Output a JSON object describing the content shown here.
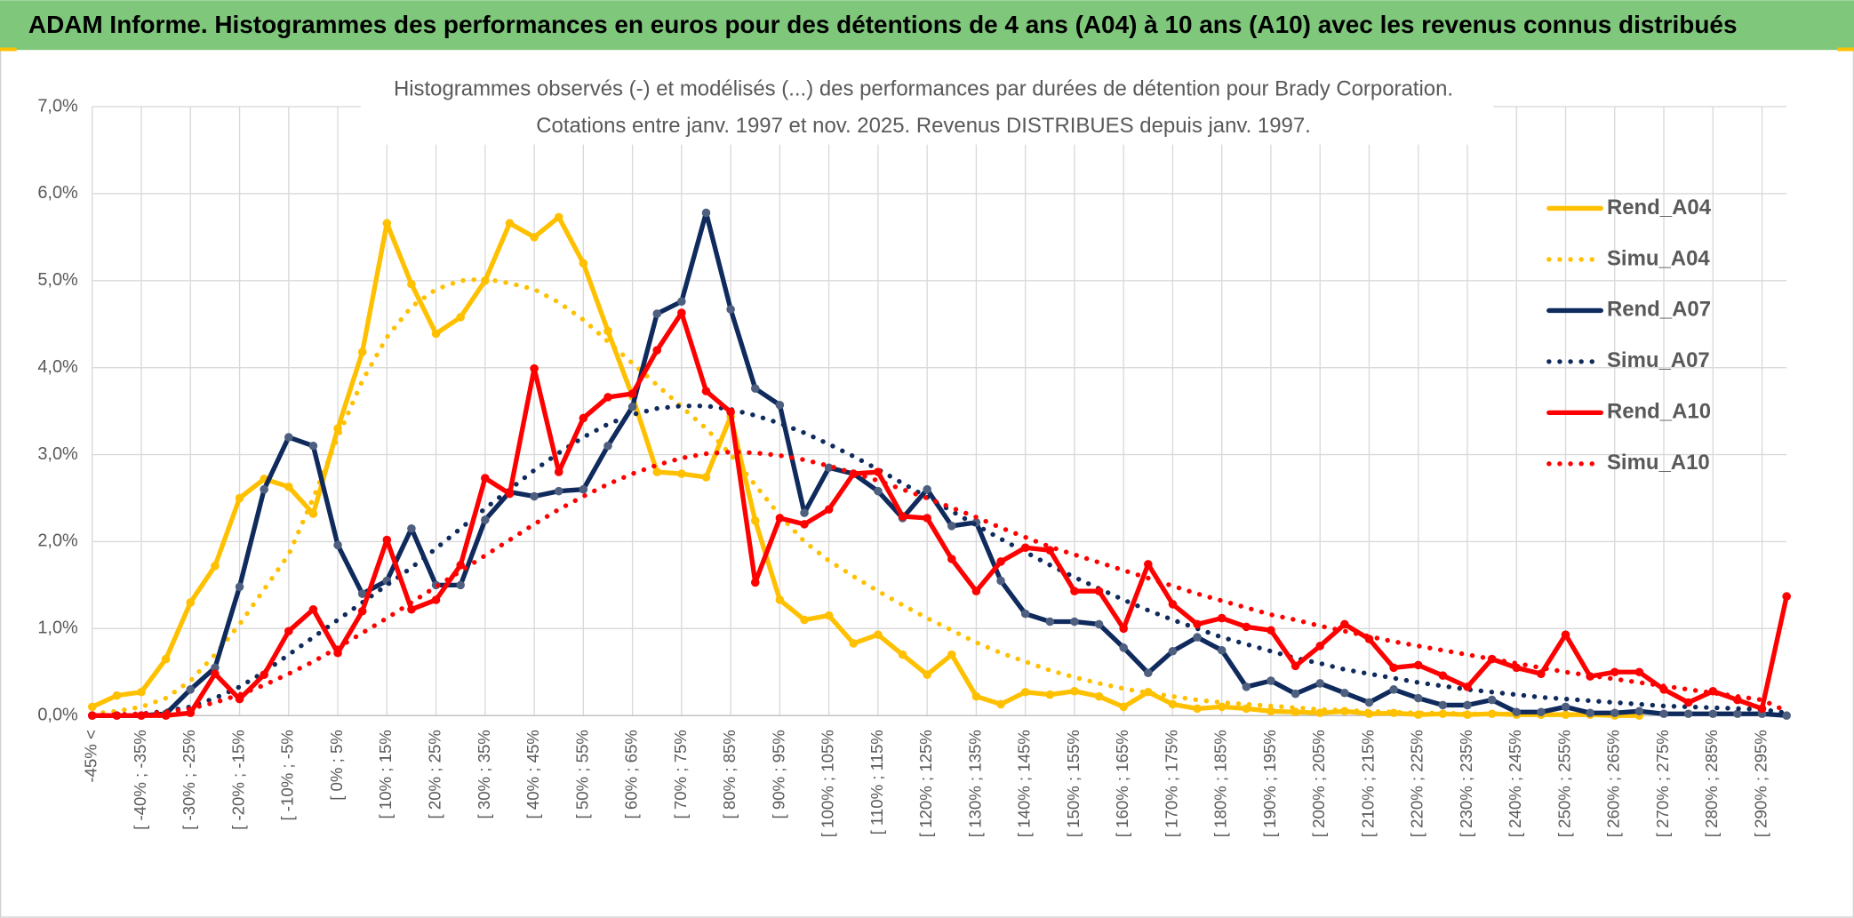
{
  "header": {
    "title": "ADAM Informe. Histogrammes des performances en euros pour des détentions de 4 ans (A04) à 10 ans (A10) avec les revenus connus distribués"
  },
  "chart_data": {
    "type": "line",
    "title": "Histogrammes observés (-) et modélisés (...) des performances par durées de détention pour Brady Corporation.",
    "subtitle": "Cotations entre janv. 1997 et nov. 2025. Revenus DISTRIBUES depuis janv. 1997.",
    "categories": [
      "-45% <",
      null,
      "[ -40% ; -35%",
      null,
      "[ -30% ; -25%",
      null,
      "[ -20% ; -15%",
      null,
      "[ -10% ; -5%",
      null,
      "[ 0% ; 5%",
      null,
      "[ 10% ; 15%",
      null,
      "[ 20% ; 25%",
      null,
      "[ 30% ; 35%",
      null,
      "[ 40% ; 45%",
      null,
      "[ 50% ; 55%",
      null,
      "[ 60% ; 65%",
      null,
      "[ 70% ; 75%",
      null,
      "[ 80% ; 85%",
      null,
      "[ 90% ; 95%",
      null,
      "[ 100% ; 105%",
      null,
      "[ 110% ; 115%",
      null,
      "[ 120% ; 125%",
      null,
      "[ 130% ; 135%",
      null,
      "[ 140% ; 145%",
      null,
      "[ 150% ; 155%",
      null,
      "[ 160% ; 165%",
      null,
      "[ 170% ; 175%",
      null,
      "[ 180% ; 185%",
      null,
      "[ 190% ; 195%",
      null,
      "[ 200% ; 205%",
      null,
      "[ 210% ; 215%",
      null,
      "[ 220% ; 225%",
      null,
      "[ 230% ; 235%",
      null,
      "[ 240% ; 245%",
      null,
      "[ 250% ; 255%",
      null,
      "[ 260% ; 265%",
      null,
      "[ 270% ; 275%",
      null,
      "[ 280% ; 285%",
      null,
      "[ 290% ; 295%",
      null
    ],
    "ylim": [
      0,
      7
    ],
    "yticks": [
      {
        "value": 0,
        "label": "0,0%"
      },
      {
        "value": 1,
        "label": "1,0%"
      },
      {
        "value": 2,
        "label": "2,0%"
      },
      {
        "value": 3,
        "label": "3,0%"
      },
      {
        "value": 4,
        "label": "4,0%"
      },
      {
        "value": 5,
        "label": "5,0%"
      },
      {
        "value": 6,
        "label": "6,0%"
      },
      {
        "value": 7,
        "label": "7,0%"
      }
    ],
    "grid": true,
    "legend": "right",
    "series": [
      {
        "name": "Rend_A04",
        "color": "#ffc000",
        "line_style": "solid",
        "markers": true,
        "values": [
          0.1,
          0.23,
          0.27,
          0.65,
          1.3,
          1.72,
          2.5,
          2.72,
          2.63,
          2.32,
          3.3,
          4.18,
          5.66,
          4.96,
          4.39,
          4.58,
          5.0,
          5.66,
          5.5,
          5.73,
          5.2,
          4.42,
          3.67,
          2.8,
          2.78,
          2.74,
          3.44,
          2.24,
          1.33,
          1.1,
          1.15,
          0.83,
          0.93,
          0.7,
          0.47,
          0.7,
          0.22,
          0.13,
          0.27,
          0.24,
          0.28,
          0.22,
          0.1,
          0.27,
          0.13,
          0.08,
          0.1,
          0.08,
          0.05,
          0.04,
          0.03,
          0.05,
          0.02,
          0.03,
          0.01,
          0.02,
          0.01,
          0.02,
          0.01,
          0.01,
          0.01,
          0.01,
          0,
          0,
          null,
          null,
          null,
          null,
          null,
          null
        ]
      },
      {
        "name": "Simu_A04",
        "color": "#ffc000",
        "line_style": "dotted",
        "markers": false,
        "values": [
          0.02,
          0.05,
          0.1,
          0.2,
          0.4,
          0.7,
          1.05,
          1.45,
          1.85,
          2.5,
          3.2,
          3.85,
          4.35,
          4.7,
          4.9,
          5.0,
          5.02,
          4.97,
          4.9,
          4.75,
          4.55,
          4.3,
          4.05,
          3.8,
          3.55,
          3.3,
          3.0,
          2.65,
          2.3,
          2.0,
          1.78,
          1.6,
          1.43,
          1.27,
          1.12,
          0.98,
          0.84,
          0.72,
          0.62,
          0.52,
          0.44,
          0.37,
          0.31,
          0.26,
          0.22,
          0.18,
          0.15,
          0.13,
          0.11,
          0.09,
          0.07,
          0.06,
          0.05,
          0.04,
          0.03,
          0.03,
          0.02,
          0.02,
          0.02,
          0.01,
          0.01,
          0.01,
          0.01,
          0.01,
          null,
          null,
          null,
          null,
          null,
          null
        ]
      },
      {
        "name": "Rend_A07",
        "color": "#0f2a5c",
        "marker_color": "#4f5f7f",
        "line_style": "solid",
        "markers": true,
        "values": [
          0,
          0,
          0,
          0.02,
          0.3,
          0.55,
          1.48,
          2.6,
          3.2,
          3.1,
          1.96,
          1.4,
          1.55,
          2.15,
          1.5,
          1.5,
          2.25,
          2.57,
          2.52,
          2.58,
          2.6,
          3.1,
          3.55,
          4.62,
          4.76,
          5.78,
          4.67,
          3.76,
          3.57,
          2.33,
          2.85,
          2.78,
          2.58,
          2.27,
          2.6,
          2.18,
          2.22,
          1.55,
          1.17,
          1.08,
          1.08,
          1.05,
          0.78,
          0.49,
          0.74,
          0.9,
          0.75,
          0.33,
          0.4,
          0.25,
          0.37,
          0.26,
          0.15,
          0.3,
          0.2,
          0.12,
          0.12,
          0.18,
          0.04,
          0.04,
          0.1,
          0.03,
          0.03,
          0.05,
          0.02,
          0.02,
          0.02,
          0.02,
          0.02,
          0
        ]
      },
      {
        "name": "Simu_A07",
        "color": "#0f2a5c",
        "line_style": "dotted",
        "markers": false,
        "values": [
          0,
          0.01,
          0.02,
          0.05,
          0.1,
          0.2,
          0.33,
          0.5,
          0.7,
          0.9,
          1.1,
          1.3,
          1.5,
          1.7,
          1.92,
          2.15,
          2.38,
          2.6,
          2.82,
          3.02,
          3.2,
          3.35,
          3.46,
          3.53,
          3.56,
          3.56,
          3.52,
          3.45,
          3.36,
          3.25,
          3.12,
          2.98,
          2.83,
          2.67,
          2.51,
          2.35,
          2.19,
          2.03,
          1.88,
          1.73,
          1.59,
          1.46,
          1.33,
          1.21,
          1.1,
          1.0,
          0.9,
          0.82,
          0.74,
          0.66,
          0.6,
          0.53,
          0.48,
          0.43,
          0.38,
          0.34,
          0.3,
          0.27,
          0.24,
          0.21,
          0.19,
          0.17,
          0.15,
          0.13,
          0.11,
          0.1,
          0.09,
          0.08,
          0.07,
          0.03
        ]
      },
      {
        "name": "Rend_A10",
        "color": "#ff0000",
        "line_style": "solid",
        "markers": true,
        "values": [
          0,
          0,
          0,
          0,
          0.03,
          0.48,
          0.19,
          0.47,
          0.97,
          1.22,
          0.72,
          1.2,
          2.02,
          1.22,
          1.33,
          1.73,
          2.73,
          2.55,
          3.99,
          2.8,
          3.42,
          3.66,
          3.7,
          4.2,
          4.63,
          3.73,
          3.49,
          1.53,
          2.27,
          2.2,
          2.37,
          2.78,
          2.8,
          2.29,
          2.27,
          1.8,
          1.43,
          1.77,
          1.93,
          1.9,
          1.43,
          1.43,
          1.0,
          1.74,
          1.28,
          1.05,
          1.12,
          1.02,
          0.98,
          0.57,
          0.8,
          1.05,
          0.88,
          0.55,
          0.58,
          0.46,
          0.33,
          0.65,
          0.55,
          0.48,
          0.93,
          0.45,
          0.5,
          0.5,
          0.3,
          0.15,
          0.28,
          0.18,
          0.08,
          1.37
        ]
      },
      {
        "name": "Simu_A10",
        "color": "#ff0000",
        "line_style": "dotted",
        "markers": false,
        "values": [
          0,
          0.01,
          0.02,
          0.04,
          0.08,
          0.15,
          0.24,
          0.35,
          0.48,
          0.62,
          0.78,
          0.95,
          1.12,
          1.3,
          1.48,
          1.66,
          1.84,
          2.02,
          2.2,
          2.37,
          2.52,
          2.66,
          2.78,
          2.88,
          2.96,
          3.01,
          3.03,
          3.02,
          2.99,
          2.94,
          2.87,
          2.79,
          2.7,
          2.6,
          2.5,
          2.39,
          2.28,
          2.16,
          2.05,
          1.94,
          1.85,
          1.76,
          1.67,
          1.58,
          1.49,
          1.4,
          1.32,
          1.24,
          1.16,
          1.1,
          1.03,
          0.97,
          0.91,
          0.85,
          0.8,
          0.75,
          0.7,
          0.65,
          0.6,
          0.55,
          0.5,
          0.46,
          0.42,
          0.38,
          0.34,
          0.3,
          0.26,
          0.22,
          0.18,
          0.05
        ]
      }
    ]
  }
}
